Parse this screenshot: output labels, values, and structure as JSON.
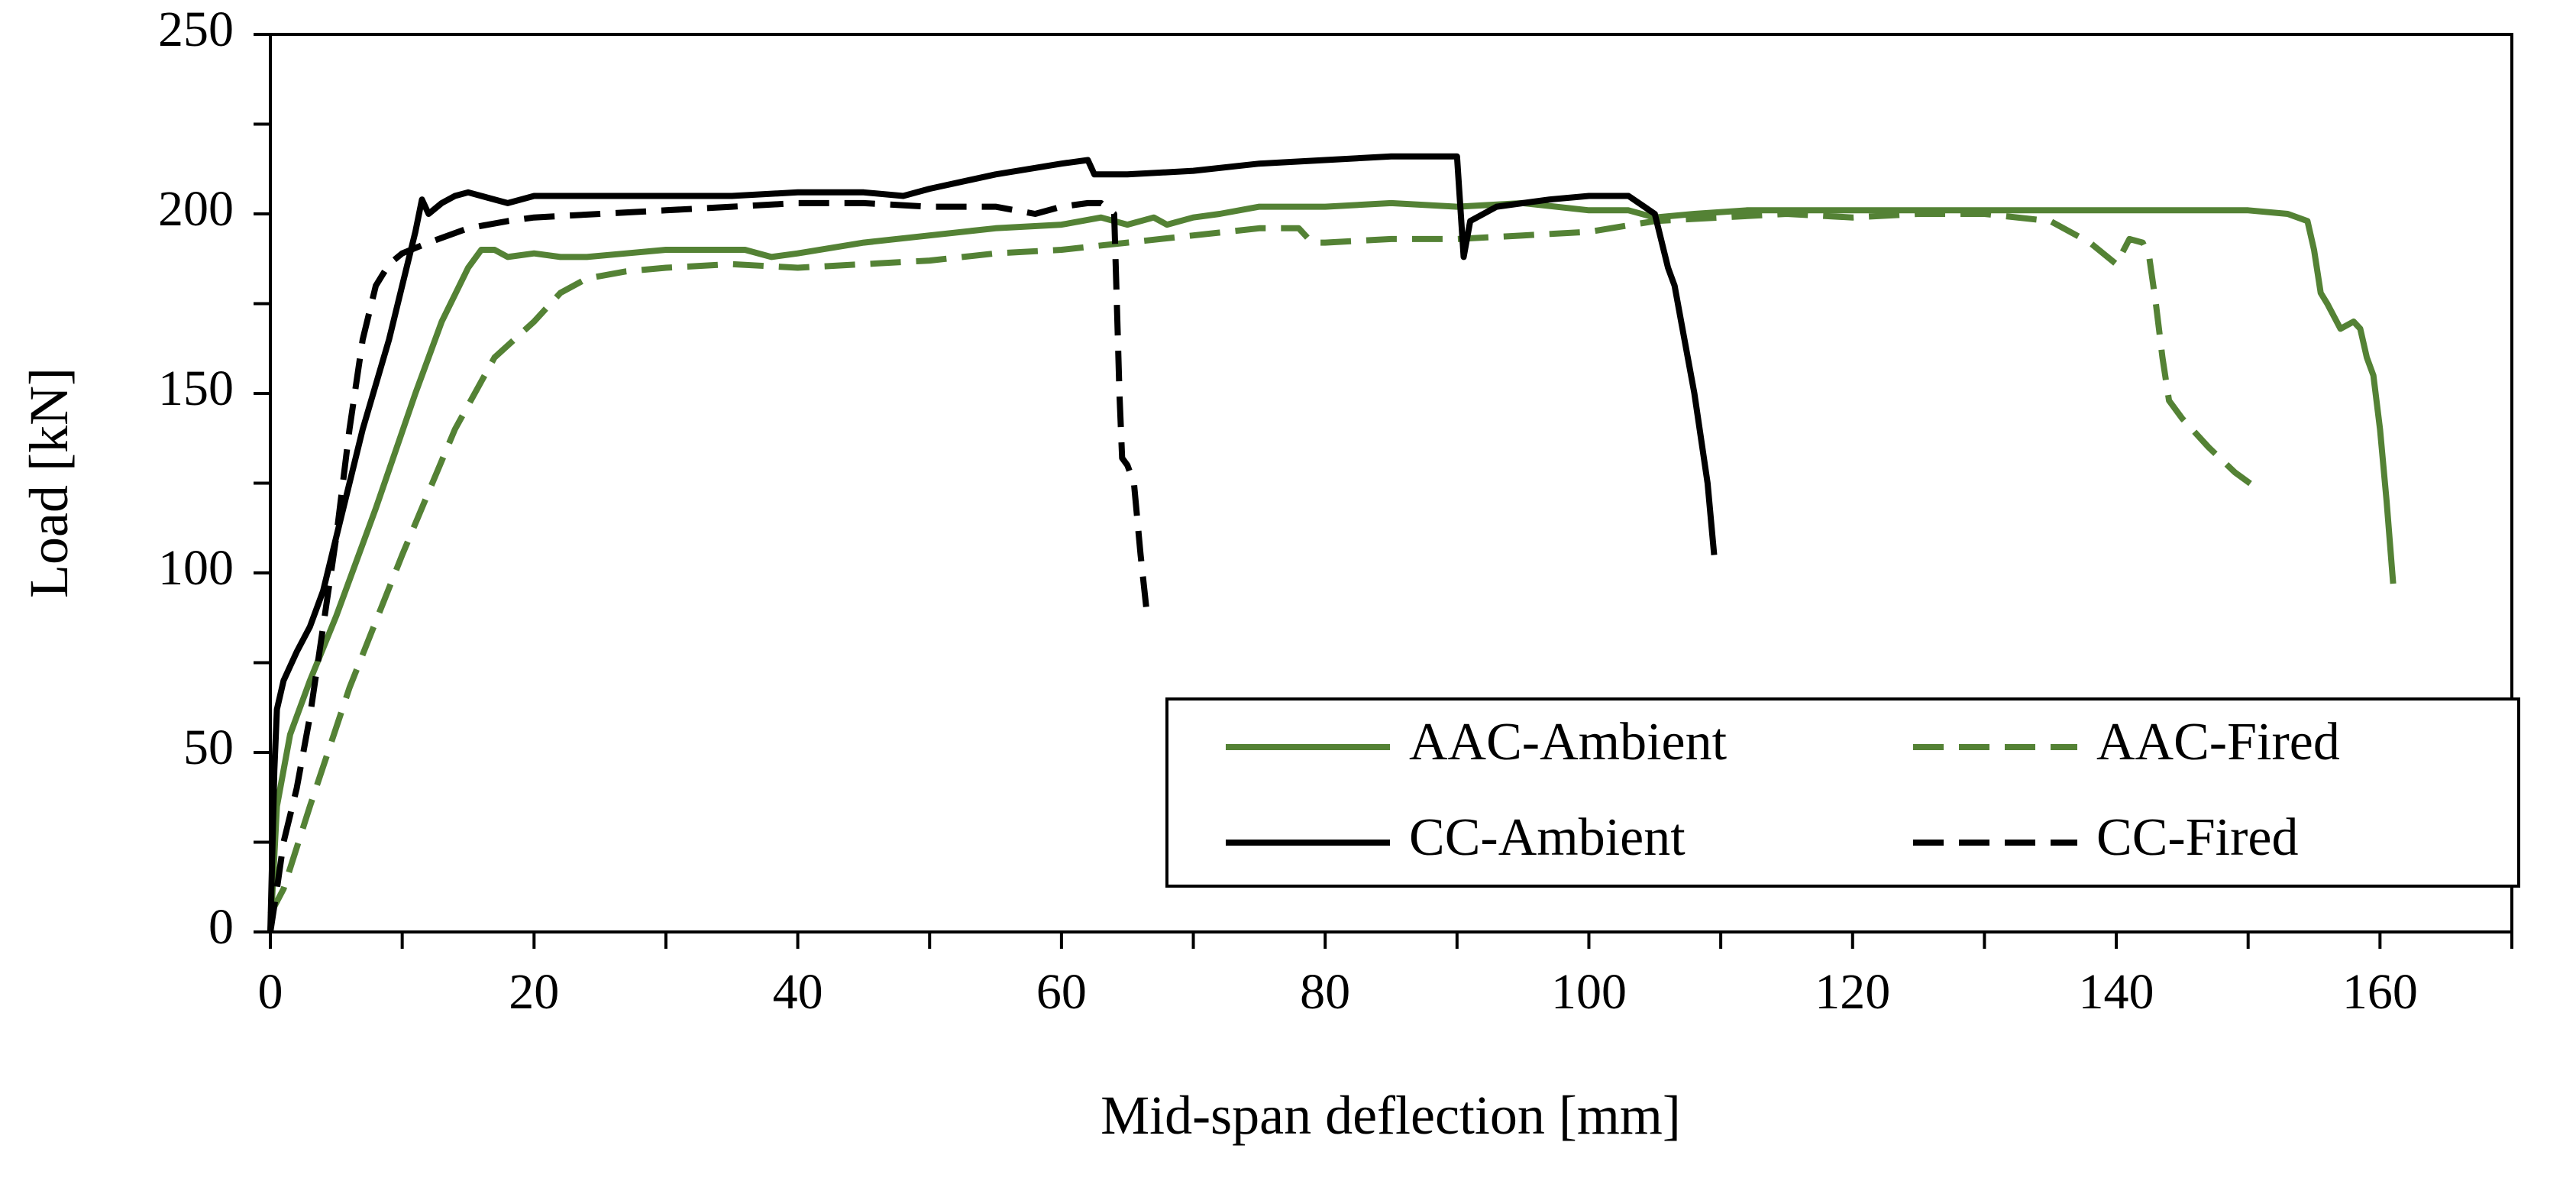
{
  "chart_data": {
    "type": "line",
    "title": "",
    "xlabel": "Mid-span deflection [mm]",
    "ylabel": "Load [kN]",
    "xlim": [
      0,
      170
    ],
    "ylim": [
      0,
      250
    ],
    "xticks": [
      0,
      20,
      40,
      60,
      80,
      100,
      120,
      140,
      160
    ],
    "yticks": [
      0,
      50,
      100,
      150,
      200,
      250
    ],
    "grid": false,
    "legend_position": "bottom-right",
    "series": [
      {
        "name": "AAC-Ambient",
        "color": "#548235",
        "dash": "solid",
        "x": [
          0,
          0.5,
          1.5,
          3,
          5,
          8,
          11,
          13,
          15,
          16,
          17,
          18,
          20,
          22,
          24,
          27,
          30,
          33,
          36,
          38,
          40,
          45,
          50,
          55,
          60,
          63,
          65,
          67,
          68,
          70,
          72,
          75,
          80,
          85,
          90,
          95,
          100,
          103,
          105,
          108,
          112,
          120,
          130,
          140,
          150,
          153,
          154.5,
          155,
          155.5,
          156,
          157,
          158,
          158.5,
          159,
          159.5,
          160,
          160.5,
          161
        ],
        "y": [
          0,
          35,
          55,
          70,
          88,
          118,
          150,
          170,
          185,
          190,
          190,
          188,
          189,
          188,
          188,
          189,
          190,
          190,
          190,
          188,
          189,
          192,
          194,
          196,
          197,
          199,
          197,
          199,
          197,
          199,
          200,
          202,
          202,
          203,
          202,
          203,
          201,
          201,
          199,
          200,
          201,
          201,
          201,
          201,
          201,
          200,
          198,
          190,
          178,
          175,
          168,
          170,
          168,
          160,
          155,
          140,
          120,
          97
        ]
      },
      {
        "name": "AAC-Fired",
        "color": "#548235",
        "dash": "dashed",
        "x": [
          0,
          1,
          3,
          6,
          10,
          14,
          17,
          20,
          22,
          24,
          27,
          30,
          35,
          40,
          45,
          50,
          55,
          60,
          65,
          70,
          75,
          78,
          79,
          80,
          85,
          90,
          95,
          100,
          105,
          110,
          115,
          120,
          125,
          130,
          135,
          138,
          140,
          141,
          142,
          142.5,
          143,
          143.5,
          144,
          145,
          147,
          149,
          150.5
        ],
        "y": [
          5,
          12,
          35,
          68,
          105,
          140,
          160,
          170,
          178,
          182,
          184,
          185,
          186,
          185,
          186,
          187,
          189,
          190,
          192,
          194,
          196,
          196,
          192,
          192,
          193,
          193,
          194,
          195,
          198,
          199,
          200,
          199,
          200,
          200,
          198,
          192,
          186,
          193,
          192,
          188,
          175,
          160,
          148,
          143,
          135,
          128,
          124
        ]
      },
      {
        "name": "CC-Ambient",
        "color": "#000000",
        "dash": "solid",
        "x": [
          0,
          0.3,
          0.5,
          1,
          2,
          3,
          4,
          5,
          7,
          9,
          10,
          11,
          11.5,
          12,
          13,
          14,
          15,
          16,
          18,
          20,
          25,
          30,
          35,
          40,
          45,
          48,
          50,
          55,
          60,
          62,
          62.5,
          65,
          70,
          75,
          80,
          85,
          88,
          90,
          90.5,
          91,
          93,
          95,
          97,
          100,
          103,
          105,
          106,
          106.5,
          107,
          108,
          109,
          109.5
        ],
        "y": [
          0,
          45,
          62,
          70,
          78,
          85,
          95,
          110,
          140,
          165,
          180,
          195,
          204,
          200,
          203,
          205,
          206,
          205,
          203,
          205,
          205,
          205,
          205,
          206,
          206,
          205,
          207,
          211,
          214,
          215,
          211,
          211,
          212,
          214,
          215,
          216,
          216,
          216,
          188,
          198,
          202,
          203,
          204,
          205,
          205,
          200,
          185,
          180,
          170,
          150,
          125,
          105
        ]
      },
      {
        "name": "CC-Fired",
        "color": "#000000",
        "dash": "dashed",
        "x": [
          0,
          0.5,
          1,
          2,
          3,
          4,
          5,
          6,
          7,
          8,
          9,
          10,
          12,
          15,
          18,
          20,
          25,
          30,
          35,
          40,
          45,
          50,
          55,
          58,
          60,
          62,
          63,
          64,
          64.2,
          64.4,
          64.6,
          65,
          65.5,
          66,
          66.5
        ],
        "y": [
          0,
          12,
          25,
          40,
          60,
          85,
          110,
          140,
          165,
          180,
          186,
          189,
          192,
          196,
          198,
          199,
          200,
          201,
          202,
          203,
          203,
          202,
          202,
          200,
          202,
          203,
          203,
          200,
          175,
          150,
          132,
          130,
          125,
          105,
          88
        ]
      }
    ]
  }
}
